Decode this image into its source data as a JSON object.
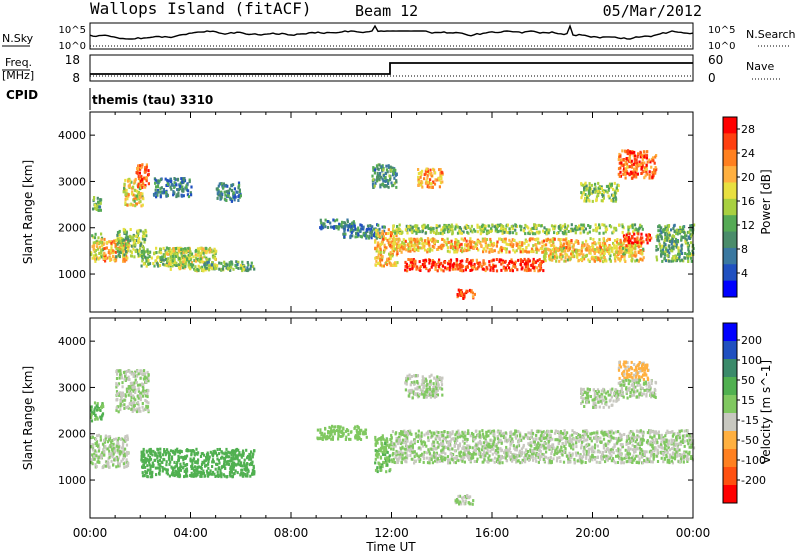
{
  "header": {
    "station": "Wallops Island (fitACF)",
    "beam": "Beam 12",
    "date": "05/Mar/2012"
  },
  "side_labels": {
    "nsky": "N.Sky",
    "nsearch": "N.Search",
    "freq": "Freq.",
    "freq_unit": "[MHz]",
    "nave": "Nave",
    "cpid": "CPID",
    "cpid_value": "themis (tau) 3310"
  },
  "noise_axis": {
    "top": "10^5",
    "bottom": "10^0"
  },
  "freq_axis": {
    "left_ticks": [
      "18",
      "8"
    ],
    "right_ticks": [
      "60",
      "0"
    ]
  },
  "colors": {
    "power": [
      "#0000ff",
      "#2050c0",
      "#3a78a0",
      "#4a8c6a",
      "#55aa55",
      "#a8d040",
      "#e8e040",
      "#ffb040",
      "#ff8020",
      "#ff4010",
      "#ff0000"
    ],
    "velocity": [
      "#ff0000",
      "#ff5010",
      "#ff8020",
      "#ffb040",
      "#c8c8c0",
      "#80c860",
      "#50b050",
      "#3a8a6a",
      "#2050c0",
      "#0000ff"
    ]
  },
  "chart_data": [
    {
      "type": "heatmap",
      "name": "Power",
      "xlabel": "Time UT",
      "ylabel": "Slant Range [km]",
      "colorbar_label": "Power [dB]",
      "x_ticks": [
        "00:00",
        "04:00",
        "08:00",
        "12:00",
        "16:00",
        "20:00",
        "00:00"
      ],
      "y_ticks": [
        1000,
        2000,
        3000,
        4000
      ],
      "colorbar_ticks": [
        4,
        8,
        12,
        16,
        20,
        24,
        28
      ],
      "xlim": [
        0,
        24
      ],
      "ylim": [
        180,
        4500
      ],
      "clim": [
        0,
        30
      ],
      "regions": [
        {
          "t": [
            0.0,
            0.5
          ],
          "r": [
            1300,
            1900
          ],
          "v": 16
        },
        {
          "t": [
            0.0,
            0.4
          ],
          "r": [
            2400,
            2700
          ],
          "v": 12
        },
        {
          "t": [
            0.5,
            1.5
          ],
          "r": [
            1300,
            1800
          ],
          "v": 22
        },
        {
          "t": [
            1.0,
            2.2
          ],
          "r": [
            1400,
            2000
          ],
          "v": 14
        },
        {
          "t": [
            1.3,
            2.1
          ],
          "r": [
            2500,
            3100
          ],
          "v": 18
        },
        {
          "t": [
            1.8,
            2.3
          ],
          "r": [
            2900,
            3400
          ],
          "v": 24
        },
        {
          "t": [
            2.0,
            4.0
          ],
          "r": [
            1200,
            1600
          ],
          "v": 14
        },
        {
          "t": [
            2.5,
            4.0
          ],
          "r": [
            2700,
            3100
          ],
          "v": 8
        },
        {
          "t": [
            3.0,
            5.0
          ],
          "r": [
            1100,
            1600
          ],
          "v": 16
        },
        {
          "t": [
            4.5,
            6.5
          ],
          "r": [
            1100,
            1300
          ],
          "v": 12
        },
        {
          "t": [
            5.0,
            6.0
          ],
          "r": [
            2600,
            3000
          ],
          "v": 8
        },
        {
          "t": [
            9.0,
            10.5
          ],
          "r": [
            2000,
            2200
          ],
          "v": 8
        },
        {
          "t": [
            10.0,
            11.7
          ],
          "r": [
            1800,
            2100
          ],
          "v": 8
        },
        {
          "t": [
            11.3,
            12.2
          ],
          "r": [
            1200,
            2000
          ],
          "v": 20
        },
        {
          "t": [
            11.2,
            12.2
          ],
          "r": [
            2900,
            3400
          ],
          "v": 10
        },
        {
          "t": [
            12.0,
            22.0
          ],
          "r": [
            1500,
            1800
          ],
          "v": 20
        },
        {
          "t": [
            12.0,
            22.0
          ],
          "r": [
            1900,
            2100
          ],
          "v": 14
        },
        {
          "t": [
            12.5,
            18.0
          ],
          "r": [
            1100,
            1350
          ],
          "v": 26
        },
        {
          "t": [
            13.0,
            14.0
          ],
          "r": [
            2900,
            3300
          ],
          "v": 22
        },
        {
          "t": [
            14.5,
            15.3
          ],
          "r": [
            500,
            700
          ],
          "v": 26
        },
        {
          "t": [
            18.0,
            22.0
          ],
          "r": [
            1300,
            1600
          ],
          "v": 18
        },
        {
          "t": [
            19.5,
            21.0
          ],
          "r": [
            2600,
            3000
          ],
          "v": 14
        },
        {
          "t": [
            21.0,
            22.5
          ],
          "r": [
            3100,
            3700
          ],
          "v": 24
        },
        {
          "t": [
            21.2,
            22.3
          ],
          "r": [
            1700,
            1900
          ],
          "v": 26
        },
        {
          "t": [
            22.5,
            24.0
          ],
          "r": [
            1300,
            2100
          ],
          "v": 12
        }
      ]
    },
    {
      "type": "heatmap",
      "name": "Velocity",
      "xlabel": "Time UT",
      "ylabel": "Slant Range [km]",
      "colorbar_label": "Velocity [m s^-1]",
      "x_ticks": [
        "00:00",
        "04:00",
        "08:00",
        "12:00",
        "16:00",
        "20:00",
        "00:00"
      ],
      "y_ticks": [
        1000,
        2000,
        3000,
        4000
      ],
      "colorbar_ticks": [
        200,
        100,
        50,
        15,
        -15,
        -50,
        -100,
        -200
      ],
      "xlim": [
        0,
        24
      ],
      "ylim": [
        180,
        4500
      ],
      "clim": [
        -250,
        250
      ],
      "regions": [
        {
          "t": [
            0.0,
            0.5
          ],
          "r": [
            2300,
            2700
          ],
          "v": 60
        },
        {
          "t": [
            0.0,
            1.5
          ],
          "r": [
            1300,
            2000
          ],
          "v": 0
        },
        {
          "t": [
            1.0,
            2.3
          ],
          "r": [
            2500,
            3400
          ],
          "v": 0
        },
        {
          "t": [
            2.0,
            6.5
          ],
          "r": [
            1100,
            1700
          ],
          "v": 70
        },
        {
          "t": [
            9.0,
            11.0
          ],
          "r": [
            1900,
            2200
          ],
          "v": 30
        },
        {
          "t": [
            11.3,
            12.0
          ],
          "r": [
            1200,
            2000
          ],
          "v": 40
        },
        {
          "t": [
            12.0,
            24.0
          ],
          "r": [
            1400,
            2100
          ],
          "v": 0
        },
        {
          "t": [
            12.5,
            14.0
          ],
          "r": [
            2800,
            3300
          ],
          "v": 0
        },
        {
          "t": [
            14.5,
            15.3
          ],
          "r": [
            500,
            700
          ],
          "v": 0
        },
        {
          "t": [
            19.5,
            21.0
          ],
          "r": [
            2600,
            3000
          ],
          "v": 0
        },
        {
          "t": [
            21.0,
            22.2
          ],
          "r": [
            3200,
            3600
          ],
          "v": -60
        },
        {
          "t": [
            21.0,
            22.5
          ],
          "r": [
            2800,
            3200
          ],
          "v": 0
        }
      ]
    }
  ]
}
